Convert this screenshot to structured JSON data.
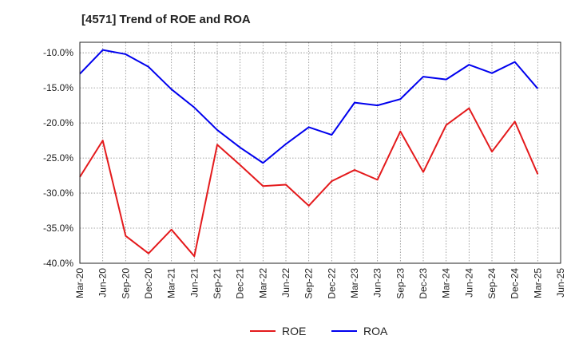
{
  "chart_data": {
    "type": "line",
    "title": "[4571]  Trend of ROE and ROA",
    "xlabel": "",
    "ylabel": "",
    "x": [
      "Mar-20",
      "Jun-20",
      "Sep-20",
      "Dec-20",
      "Mar-21",
      "Jun-21",
      "Sep-21",
      "Dec-21",
      "Mar-22",
      "Jun-22",
      "Sep-22",
      "Dec-22",
      "Mar-23",
      "Jun-23",
      "Sep-23",
      "Dec-23",
      "Mar-24",
      "Jun-24",
      "Sep-24",
      "Dec-24",
      "Mar-25",
      "Jun-25"
    ],
    "ylim": [
      -40,
      -8.5
    ],
    "yticks": [
      -40,
      -35,
      -30,
      -25,
      -20,
      -15,
      -10
    ],
    "ytick_labels": [
      "-40.0%",
      "-35.0%",
      "-30.0%",
      "-25.0%",
      "-20.0%",
      "-15.0%",
      "-10.0%"
    ],
    "grid": true,
    "legend_position": "bottom-center",
    "series": [
      {
        "name": "ROE",
        "color": "#e41a1c",
        "values": [
          -27.7,
          -22.5,
          -36.1,
          -38.6,
          -35.2,
          -39.0,
          -23.1,
          -26.0,
          -29.0,
          -28.8,
          -31.8,
          -28.3,
          -26.7,
          -28.1,
          -21.2,
          -27.0,
          -20.3,
          -17.9,
          -24.1,
          -19.8,
          -27.3,
          null
        ]
      },
      {
        "name": "ROA",
        "color": "#0000ee",
        "values": [
          -13.0,
          -9.6,
          -10.2,
          -12.0,
          -15.2,
          -17.8,
          -21.0,
          -23.5,
          -25.7,
          -23.0,
          -20.6,
          -21.7,
          -17.1,
          -17.5,
          -16.6,
          -13.4,
          -13.8,
          -11.7,
          -12.9,
          -11.3,
          -15.1,
          null
        ]
      }
    ]
  }
}
